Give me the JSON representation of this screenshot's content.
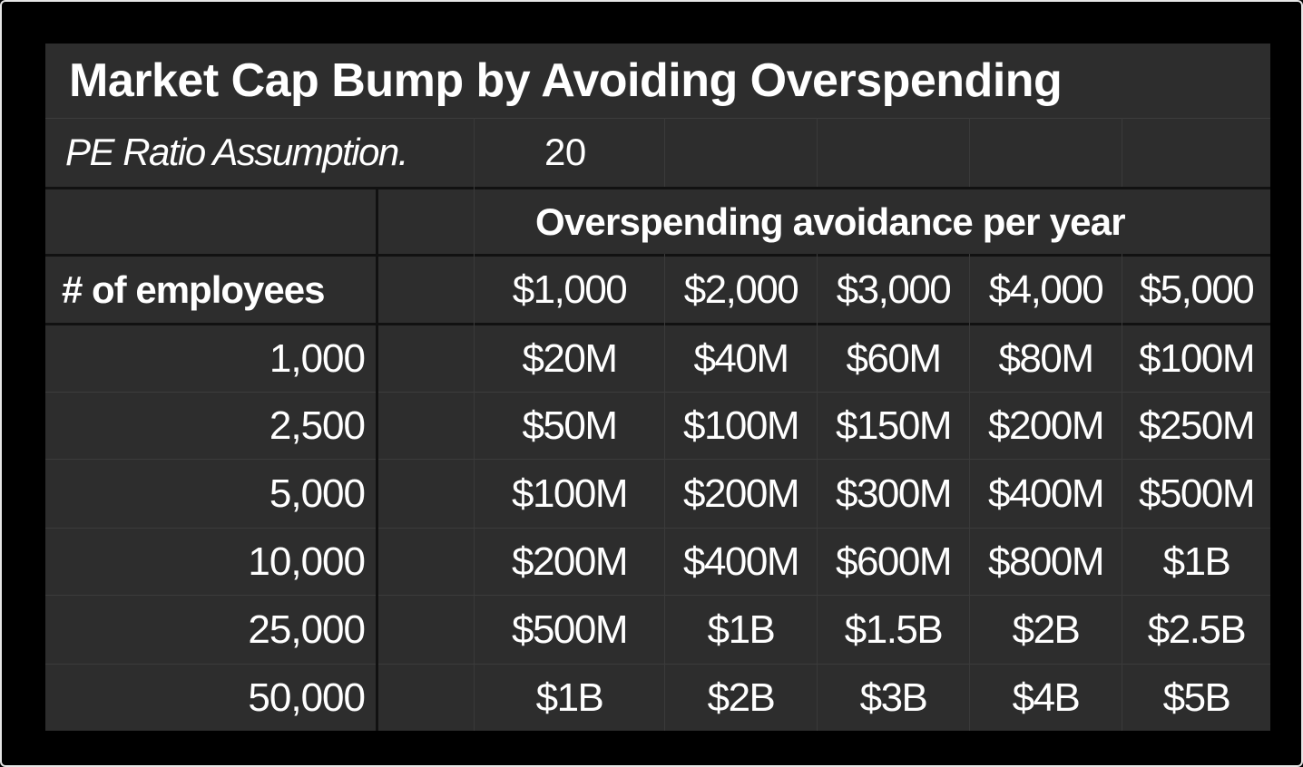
{
  "table": {
    "title": "Market Cap Bump by Avoiding Overspending",
    "pe_label": "PE Ratio Assumption.",
    "pe_value": "20",
    "group_header": "Overspending avoidance per year",
    "employees_header": "# of employees",
    "column_headers": [
      "$1,000",
      "$2,000",
      "$3,000",
      "$4,000",
      "$5,000"
    ],
    "rows": [
      {
        "employees": "1,000",
        "values": [
          "$20M",
          "$40M",
          "$60M",
          "$80M",
          "$100M"
        ]
      },
      {
        "employees": "2,500",
        "values": [
          "$50M",
          "$100M",
          "$150M",
          "$200M",
          "$250M"
        ]
      },
      {
        "employees": "5,000",
        "values": [
          "$100M",
          "$200M",
          "$300M",
          "$400M",
          "$500M"
        ]
      },
      {
        "employees": "10,000",
        "values": [
          "$200M",
          "$400M",
          "$600M",
          "$800M",
          "$1B"
        ]
      },
      {
        "employees": "25,000",
        "values": [
          "$500M",
          "$1B",
          "$1.5B",
          "$2B",
          "$2.5B"
        ]
      },
      {
        "employees": "50,000",
        "values": [
          "$1B",
          "$2B",
          "$3B",
          "$4B",
          "$5B"
        ]
      }
    ]
  },
  "colors": {
    "background": "#000000",
    "sheet": "#2d2d2d",
    "text": "#ffffff",
    "frame_border": "#e6e6e6"
  }
}
